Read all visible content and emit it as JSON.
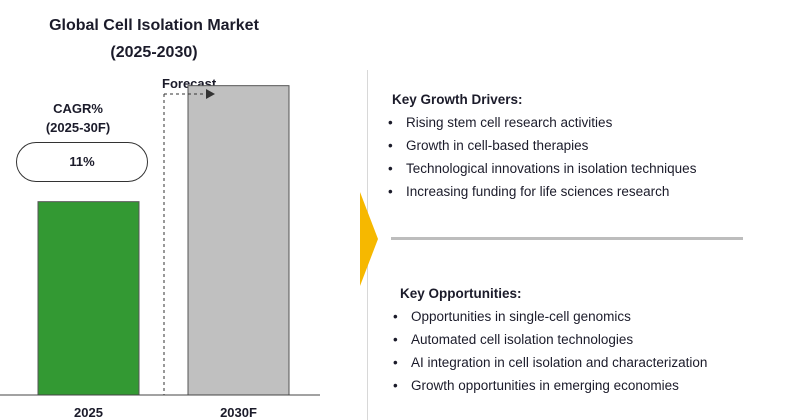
{
  "title_line1": "Global Cell Isolation Market",
  "title_line2": "(2025-2030)",
  "cagr": {
    "label_line1": "CAGR%",
    "label_line2": "(2025-30F)",
    "value": "11%"
  },
  "forecast_label": "Forecast",
  "colors": {
    "bar_2025": "#339933",
    "bar_2030": "#c0c0c0",
    "arrow": "#f6b800"
  },
  "chart_data": {
    "type": "bar",
    "categories": [
      "2025",
      "2030F"
    ],
    "values": [
      1,
      1.6
    ],
    "ylim": [
      0,
      1.8
    ],
    "grid": false,
    "legend": "none"
  },
  "drivers": {
    "heading": "Key Growth Drivers:",
    "items": [
      "Rising stem cell research activities",
      "Growth in cell-based therapies",
      "Technological innovations in isolation techniques",
      "Increasing funding for life sciences research"
    ]
  },
  "opportunities": {
    "heading": "Key Opportunities:",
    "items": [
      "Opportunities in single-cell genomics",
      "Automated cell isolation technologies",
      "AI integration in cell isolation and characterization",
      "Growth opportunities in emerging economies"
    ]
  },
  "bullet_char": "•"
}
